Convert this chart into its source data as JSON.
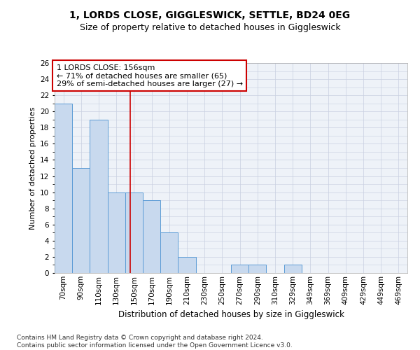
{
  "title1": "1, LORDS CLOSE, GIGGLESWICK, SETTLE, BD24 0EG",
  "title2": "Size of property relative to detached houses in Giggleswick",
  "xlabel": "Distribution of detached houses by size in Giggleswick",
  "ylabel": "Number of detached properties",
  "footnote": "Contains HM Land Registry data © Crown copyright and database right 2024.\nContains public sector information licensed under the Open Government Licence v3.0.",
  "bin_labels": [
    "70sqm",
    "90sqm",
    "110sqm",
    "130sqm",
    "150sqm",
    "170sqm",
    "190sqm",
    "210sqm",
    "230sqm",
    "250sqm",
    "270sqm",
    "290sqm",
    "310sqm",
    "329sqm",
    "349sqm",
    "369sqm",
    "409sqm",
    "429sqm",
    "449sqm",
    "469sqm"
  ],
  "values": [
    21,
    13,
    19,
    10,
    10,
    9,
    5,
    2,
    0,
    0,
    1,
    1,
    0,
    1,
    0,
    0,
    0,
    0,
    0,
    0
  ],
  "bar_color": "#c8d9ee",
  "bar_edge_color": "#5b9bd5",
  "bar_linewidth": 0.7,
  "ref_line_x": 3.8,
  "ref_line_color": "#cc0000",
  "ref_line_lw": 1.2,
  "annotation_box_text": "1 LORDS CLOSE: 156sqm\n← 71% of detached houses are smaller (65)\n29% of semi-detached houses are larger (27) →",
  "ylim": [
    0,
    26
  ],
  "yticks": [
    0,
    2,
    4,
    6,
    8,
    10,
    12,
    14,
    16,
    18,
    20,
    22,
    24,
    26
  ],
  "grid_color": "#c8cfe0",
  "bg_color": "#eef2f8",
  "fig_bg": "#ffffff",
  "title1_fontsize": 10,
  "title2_fontsize": 9,
  "xlabel_fontsize": 8.5,
  "ylabel_fontsize": 8,
  "tick_fontsize": 7.5,
  "annot_fontsize": 8,
  "footnote_fontsize": 6.5
}
